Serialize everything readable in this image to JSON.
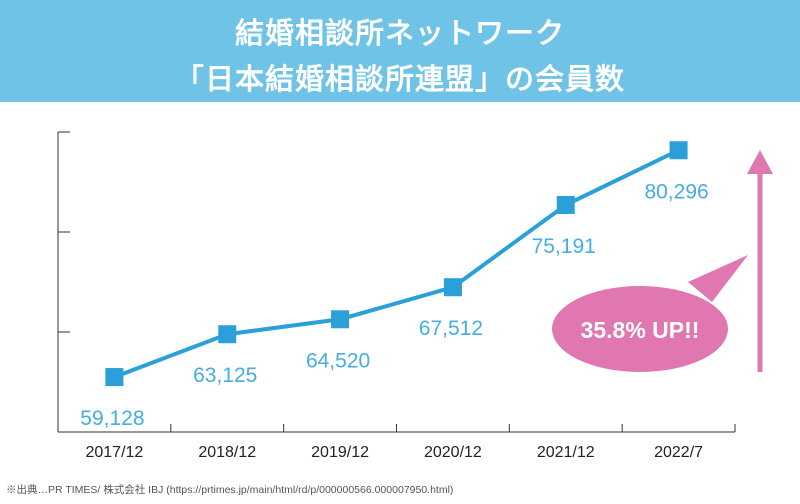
{
  "header": {
    "title_line1": "結婚相談所ネットワーク",
    "title_line2": "「日本結婚相談所連盟」の会員数"
  },
  "source": "※出典…PR TIMES/ 株式会社 IBJ (https://prtimes.jp/main/html/rd/p/000000566.000007950.html)",
  "callout": {
    "text": "35.8% UP!!",
    "color": "#e077b0"
  },
  "colors": {
    "line": "#2a9fd8",
    "marker": "#2a9fd8",
    "label": "#44aee0",
    "arrow": "#e077b0",
    "header_bg": "#6ec3e6"
  },
  "chart_data": {
    "type": "line",
    "title": "結婚相談所ネットワーク「日本結婚相談所連盟」の会員数",
    "xlabel": "",
    "ylabel": "",
    "categories": [
      "2017/12",
      "2018/12",
      "2019/12",
      "2020/12",
      "2021/12",
      "2022/7"
    ],
    "series": [
      {
        "values": [
          59128,
          63125,
          64520,
          67512,
          75191,
          80296
        ]
      }
    ],
    "data_labels": [
      "59,128",
      "63,125",
      "64,520",
      "67,512",
      "75,191",
      "80,296"
    ],
    "label_position": [
      "below",
      "below",
      "below",
      "below",
      "below",
      "below"
    ],
    "ylim": [
      54000,
      82000
    ],
    "y_tick_count": 4,
    "grid": false,
    "legend": "none"
  }
}
